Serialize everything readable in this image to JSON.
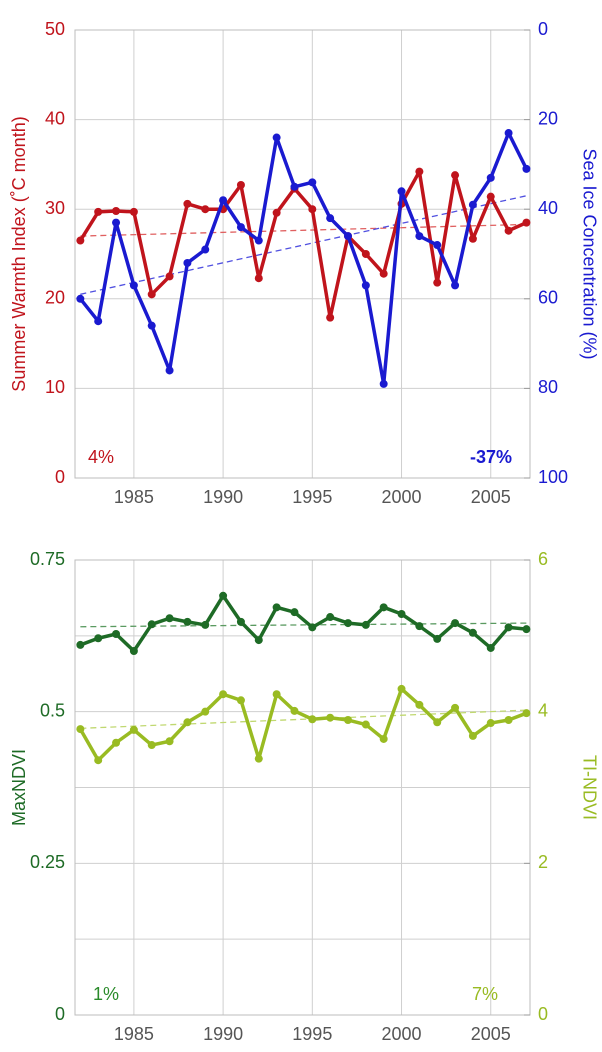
{
  "chart_data": [
    {
      "type": "line",
      "ylabel": "Summer Warmth Index (˚C month)",
      "y2label": "Sea Ice Concentration (%)",
      "xlim": [
        1981.7,
        2007.2
      ],
      "xticks": [
        1985,
        1990,
        1995,
        2000,
        2005
      ],
      "ylim": [
        0,
        50
      ],
      "yticks": [
        0,
        10,
        20,
        30,
        40,
        50
      ],
      "y2lim": [
        100,
        0
      ],
      "y2ticks": [
        0,
        20,
        40,
        60,
        80,
        100
      ],
      "grid": true,
      "x": [
        1982,
        1983,
        1984,
        1985,
        1986,
        1987,
        1988,
        1989,
        1990,
        1991,
        1992,
        1993,
        1994,
        1995,
        1996,
        1997,
        1998,
        1999,
        2000,
        2001,
        2002,
        2003,
        2004,
        2005,
        2006,
        2007
      ],
      "series": [
        {
          "color": "#c0141c",
          "axis": "y",
          "values": [
            26.5,
            29.7,
            29.8,
            29.7,
            20.5,
            22.5,
            30.6,
            30.0,
            30.0,
            32.7,
            22.3,
            29.6,
            32.3,
            30.0,
            17.9,
            27.0,
            25.0,
            22.8,
            30.6,
            34.2,
            21.8,
            33.8,
            26.7,
            31.4,
            27.6,
            28.5
          ]
        },
        {
          "color": "#1a1ad0",
          "axis": "y2",
          "values": [
            60,
            65,
            43,
            57,
            66,
            76,
            52,
            49,
            38,
            44,
            47,
            24,
            35,
            34,
            42,
            46,
            57,
            79,
            36,
            46,
            48,
            57,
            39,
            33,
            23,
            31
          ]
        }
      ],
      "trends": [
        {
          "color": "#e06060",
          "axis": "y",
          "x": [
            1982,
            2007
          ],
          "values": [
            27.0,
            28.3
          ]
        },
        {
          "color": "#5050e0",
          "axis": "y2",
          "x": [
            1982,
            2007
          ],
          "values": [
            59,
            37
          ]
        }
      ],
      "annotations": [
        {
          "text": "4%",
          "color": "#c0141c"
        },
        {
          "text": "-37%",
          "color": "#1a1ad0"
        }
      ]
    },
    {
      "type": "line",
      "ylabel": "MaxNDVI",
      "y2label": "TI-NDVI",
      "xlim": [
        1981.7,
        2007.2
      ],
      "xticks": [
        1985,
        1990,
        1995,
        2000,
        2005
      ],
      "ylim": [
        0,
        0.75
      ],
      "yticks": [
        0,
        0.25,
        0.5,
        0.75
      ],
      "minor_yticks": [
        0.125,
        0.375,
        0.625
      ],
      "y2lim": [
        0,
        6
      ],
      "y2ticks": [
        0,
        2,
        4,
        6
      ],
      "grid": true,
      "x": [
        1982,
        1983,
        1984,
        1985,
        1986,
        1987,
        1988,
        1989,
        1990,
        1991,
        1992,
        1993,
        1994,
        1995,
        1996,
        1997,
        1998,
        1999,
        2000,
        2001,
        2002,
        2003,
        2004,
        2005,
        2006,
        2007
      ],
      "series": [
        {
          "color": "#1e6b26",
          "axis": "y",
          "values": [
            0.61,
            0.621,
            0.628,
            0.6,
            0.644,
            0.654,
            0.648,
            0.643,
            0.691,
            0.648,
            0.618,
            0.672,
            0.664,
            0.639,
            0.656,
            0.646,
            0.643,
            0.672,
            0.661,
            0.641,
            0.62,
            0.646,
            0.63,
            0.605,
            0.639,
            0.636
          ]
        },
        {
          "color": "#99bb22",
          "axis": "y2",
          "values": [
            3.77,
            3.36,
            3.59,
            3.76,
            3.56,
            3.61,
            3.86,
            4.0,
            4.23,
            4.15,
            3.38,
            4.23,
            4.01,
            3.9,
            3.92,
            3.89,
            3.83,
            3.64,
            4.3,
            4.09,
            3.86,
            4.05,
            3.68,
            3.85,
            3.89,
            3.98
          ]
        }
      ],
      "trends": [
        {
          "color": "#5a9a60",
          "axis": "y",
          "x": [
            1982,
            2007
          ],
          "values": [
            0.64,
            0.646
          ]
        },
        {
          "color": "#c0d870",
          "axis": "y2",
          "x": [
            1982,
            2007
          ],
          "values": [
            3.78,
            4.02
          ]
        }
      ],
      "annotations": [
        {
          "text": "1%",
          "color": "#2a8a2a"
        },
        {
          "text": "7%",
          "color": "#99bb22"
        }
      ]
    }
  ]
}
